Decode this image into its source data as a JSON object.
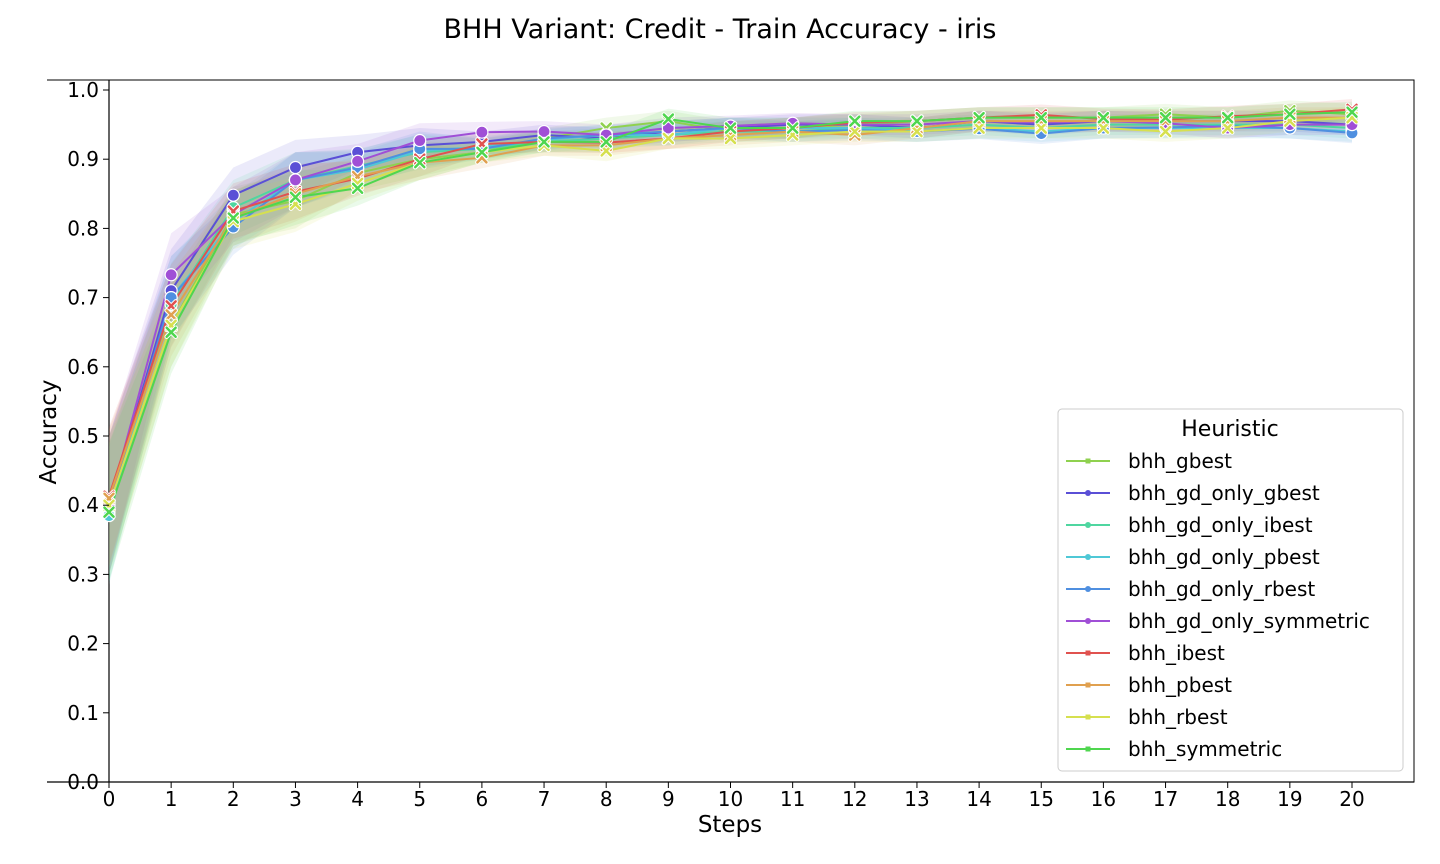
{
  "chart_data": {
    "type": "line",
    "title": "BHH Variant: Credit - Train Accuracy - iris",
    "xlabel": "Steps",
    "ylabel": "Accuracy",
    "xlim": [
      0,
      20
    ],
    "ylim": [
      0.0,
      1.0
    ],
    "x": [
      0,
      1,
      2,
      3,
      4,
      5,
      6,
      7,
      8,
      9,
      10,
      11,
      12,
      13,
      14,
      15,
      16,
      17,
      18,
      19,
      20
    ],
    "yticks": [
      "0.0",
      "0.1",
      "0.2",
      "0.3",
      "0.4",
      "0.5",
      "0.6",
      "0.7",
      "0.8",
      "0.9",
      "1.0"
    ],
    "xticks": [
      "0",
      "1",
      "2",
      "3",
      "4",
      "5",
      "6",
      "7",
      "8",
      "9",
      "10",
      "11",
      "12",
      "13",
      "14",
      "15",
      "16",
      "17",
      "18",
      "19",
      "20"
    ],
    "legend": {
      "title": "Heuristic",
      "placement": "lower-right"
    },
    "series": [
      {
        "name": "bhh_gbest",
        "color": "#8fd14f",
        "marker": "x",
        "values": [
          0.4,
          0.66,
          0.82,
          0.84,
          0.88,
          0.9,
          0.91,
          0.93,
          0.945,
          0.955,
          0.94,
          0.945,
          0.95,
          0.955,
          0.96,
          0.96,
          0.96,
          0.965,
          0.96,
          0.97,
          0.965
        ]
      },
      {
        "name": "bhh_gd_only_gbest",
        "color": "#5a4fd6",
        "marker": "o",
        "values": [
          0.4,
          0.71,
          0.848,
          0.888,
          0.91,
          0.92,
          0.925,
          0.935,
          0.93,
          0.94,
          0.945,
          0.95,
          0.95,
          0.945,
          0.955,
          0.95,
          0.955,
          0.955,
          0.955,
          0.955,
          0.95
        ]
      },
      {
        "name": "bhh_gd_only_ibest",
        "color": "#4fd6a0",
        "marker": "o",
        "values": [
          0.39,
          0.69,
          0.83,
          0.87,
          0.89,
          0.91,
          0.915,
          0.925,
          0.93,
          0.935,
          0.94,
          0.94,
          0.945,
          0.945,
          0.95,
          0.945,
          0.95,
          0.95,
          0.95,
          0.95,
          0.945
        ]
      },
      {
        "name": "bhh_gd_only_pbest",
        "color": "#4fc8d6",
        "marker": "o",
        "values": [
          0.385,
          0.7,
          0.81,
          0.87,
          0.885,
          0.912,
          0.918,
          0.928,
          0.935,
          0.935,
          0.945,
          0.945,
          0.945,
          0.94,
          0.945,
          0.94,
          0.945,
          0.945,
          0.945,
          0.945,
          0.94
        ]
      },
      {
        "name": "bhh_gd_only_rbest",
        "color": "#4f8fe0",
        "marker": "o",
        "values": [
          0.4,
          0.7,
          0.802,
          0.87,
          0.888,
          0.915,
          0.915,
          0.93,
          0.935,
          0.94,
          0.945,
          0.94,
          0.942,
          0.94,
          0.944,
          0.937,
          0.945,
          0.946,
          0.948,
          0.945,
          0.938
        ]
      },
      {
        "name": "bhh_gd_only_symmetric",
        "color": "#a04fd6",
        "marker": "o",
        "values": [
          0.4,
          0.733,
          0.82,
          0.87,
          0.897,
          0.927,
          0.939,
          0.94,
          0.935,
          0.945,
          0.948,
          0.952,
          0.95,
          0.95,
          0.955,
          0.953,
          0.955,
          0.952,
          0.945,
          0.95,
          0.95
        ]
      },
      {
        "name": "bhh_ibest",
        "color": "#e0524f",
        "marker": "x",
        "values": [
          0.413,
          0.688,
          0.825,
          0.853,
          0.872,
          0.9,
          0.922,
          0.925,
          0.924,
          0.93,
          0.94,
          0.945,
          0.953,
          0.955,
          0.96,
          0.964,
          0.958,
          0.957,
          0.962,
          0.965,
          0.972
        ]
      },
      {
        "name": "bhh_pbest",
        "color": "#e0a04f",
        "marker": "x",
        "values": [
          0.41,
          0.675,
          0.815,
          0.85,
          0.875,
          0.895,
          0.902,
          0.92,
          0.92,
          0.93,
          0.935,
          0.94,
          0.935,
          0.945,
          0.955,
          0.955,
          0.955,
          0.955,
          0.955,
          0.96,
          0.96
        ]
      },
      {
        "name": "bhh_rbest",
        "color": "#d6e04f",
        "marker": "x",
        "values": [
          0.4,
          0.66,
          0.81,
          0.835,
          0.865,
          0.895,
          0.91,
          0.92,
          0.912,
          0.93,
          0.93,
          0.935,
          0.94,
          0.94,
          0.945,
          0.945,
          0.945,
          0.94,
          0.945,
          0.955,
          0.96
        ]
      },
      {
        "name": "bhh_symmetric",
        "color": "#4fd64f",
        "marker": "x",
        "values": [
          0.39,
          0.65,
          0.815,
          0.845,
          0.858,
          0.895,
          0.91,
          0.925,
          0.925,
          0.958,
          0.945,
          0.945,
          0.955,
          0.955,
          0.96,
          0.96,
          0.96,
          0.96,
          0.96,
          0.965,
          0.968
        ]
      }
    ]
  }
}
